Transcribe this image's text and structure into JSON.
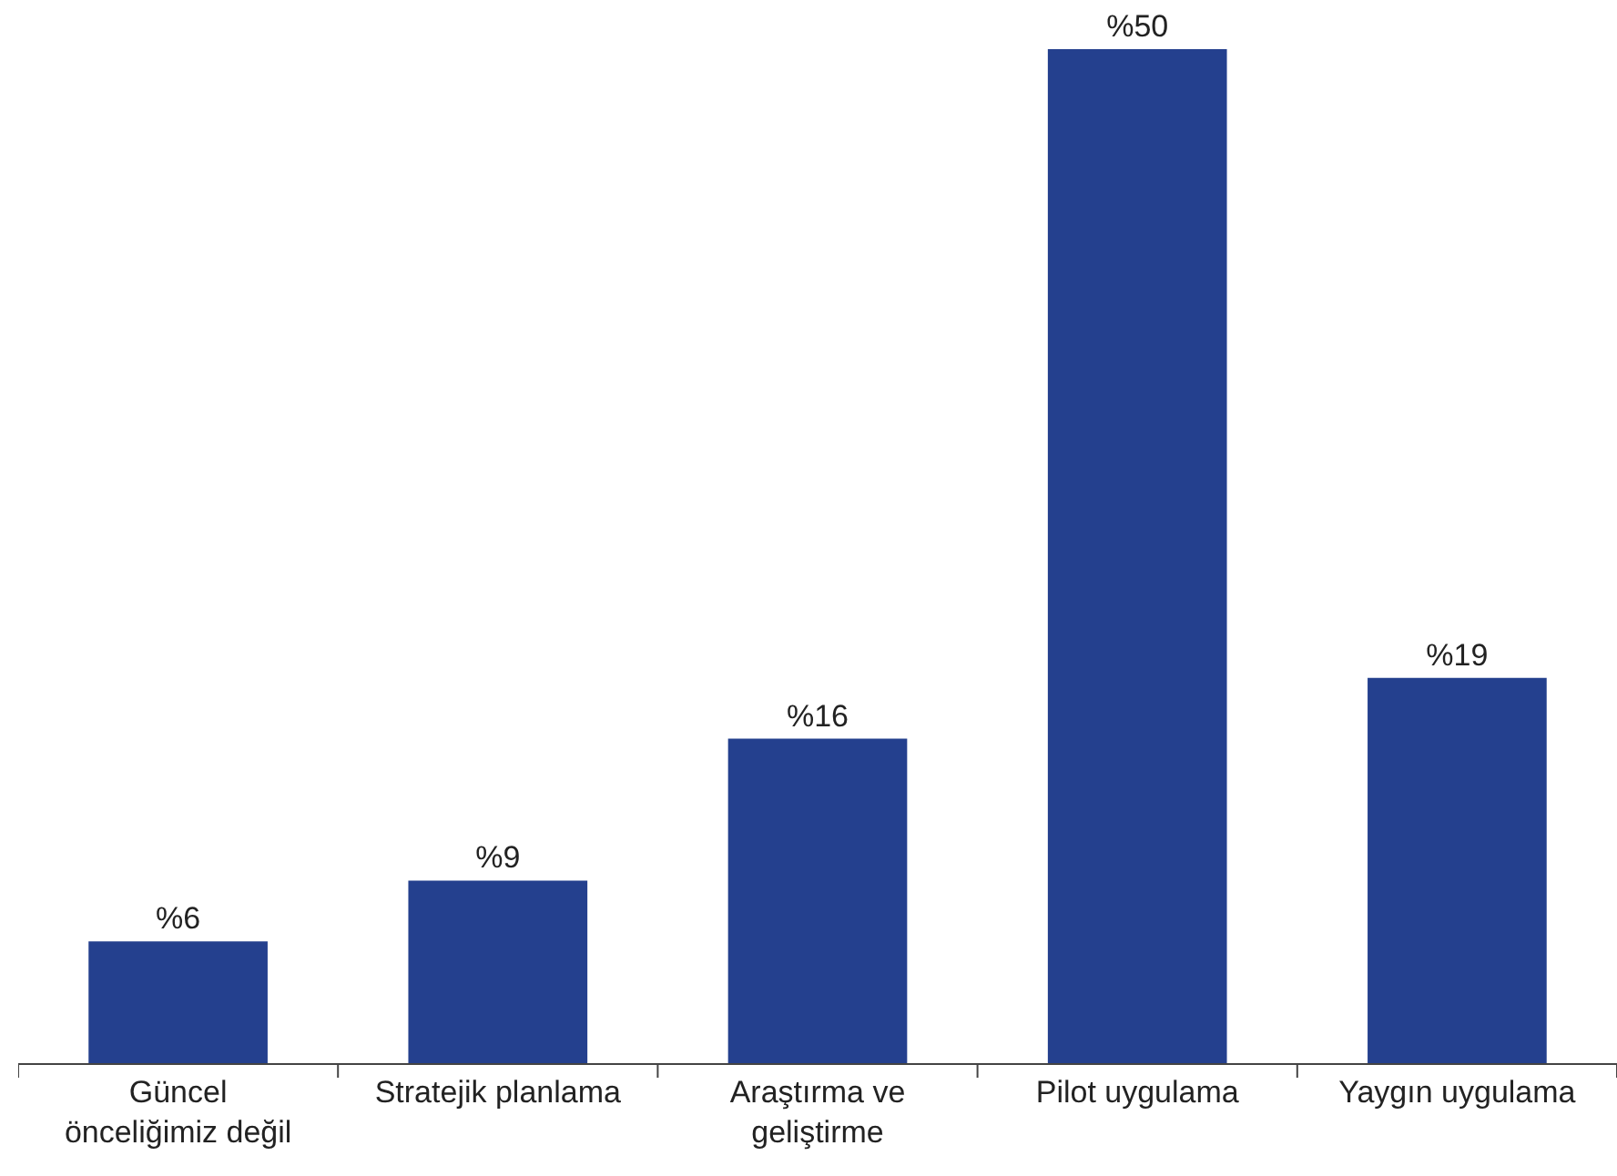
{
  "chart_data": {
    "type": "bar",
    "categories": [
      "Güncel\nönceliğimiz değil",
      "Stratejik planlama",
      "Araştırma ve\ngeliştirme",
      "Pilot uygulama",
      "Yaygın uygulama"
    ],
    "values": [
      6,
      9,
      16,
      50,
      19
    ],
    "value_labels": [
      "%6",
      "%9",
      "%16",
      "%50",
      "%19"
    ],
    "color": "#24408e"
  }
}
